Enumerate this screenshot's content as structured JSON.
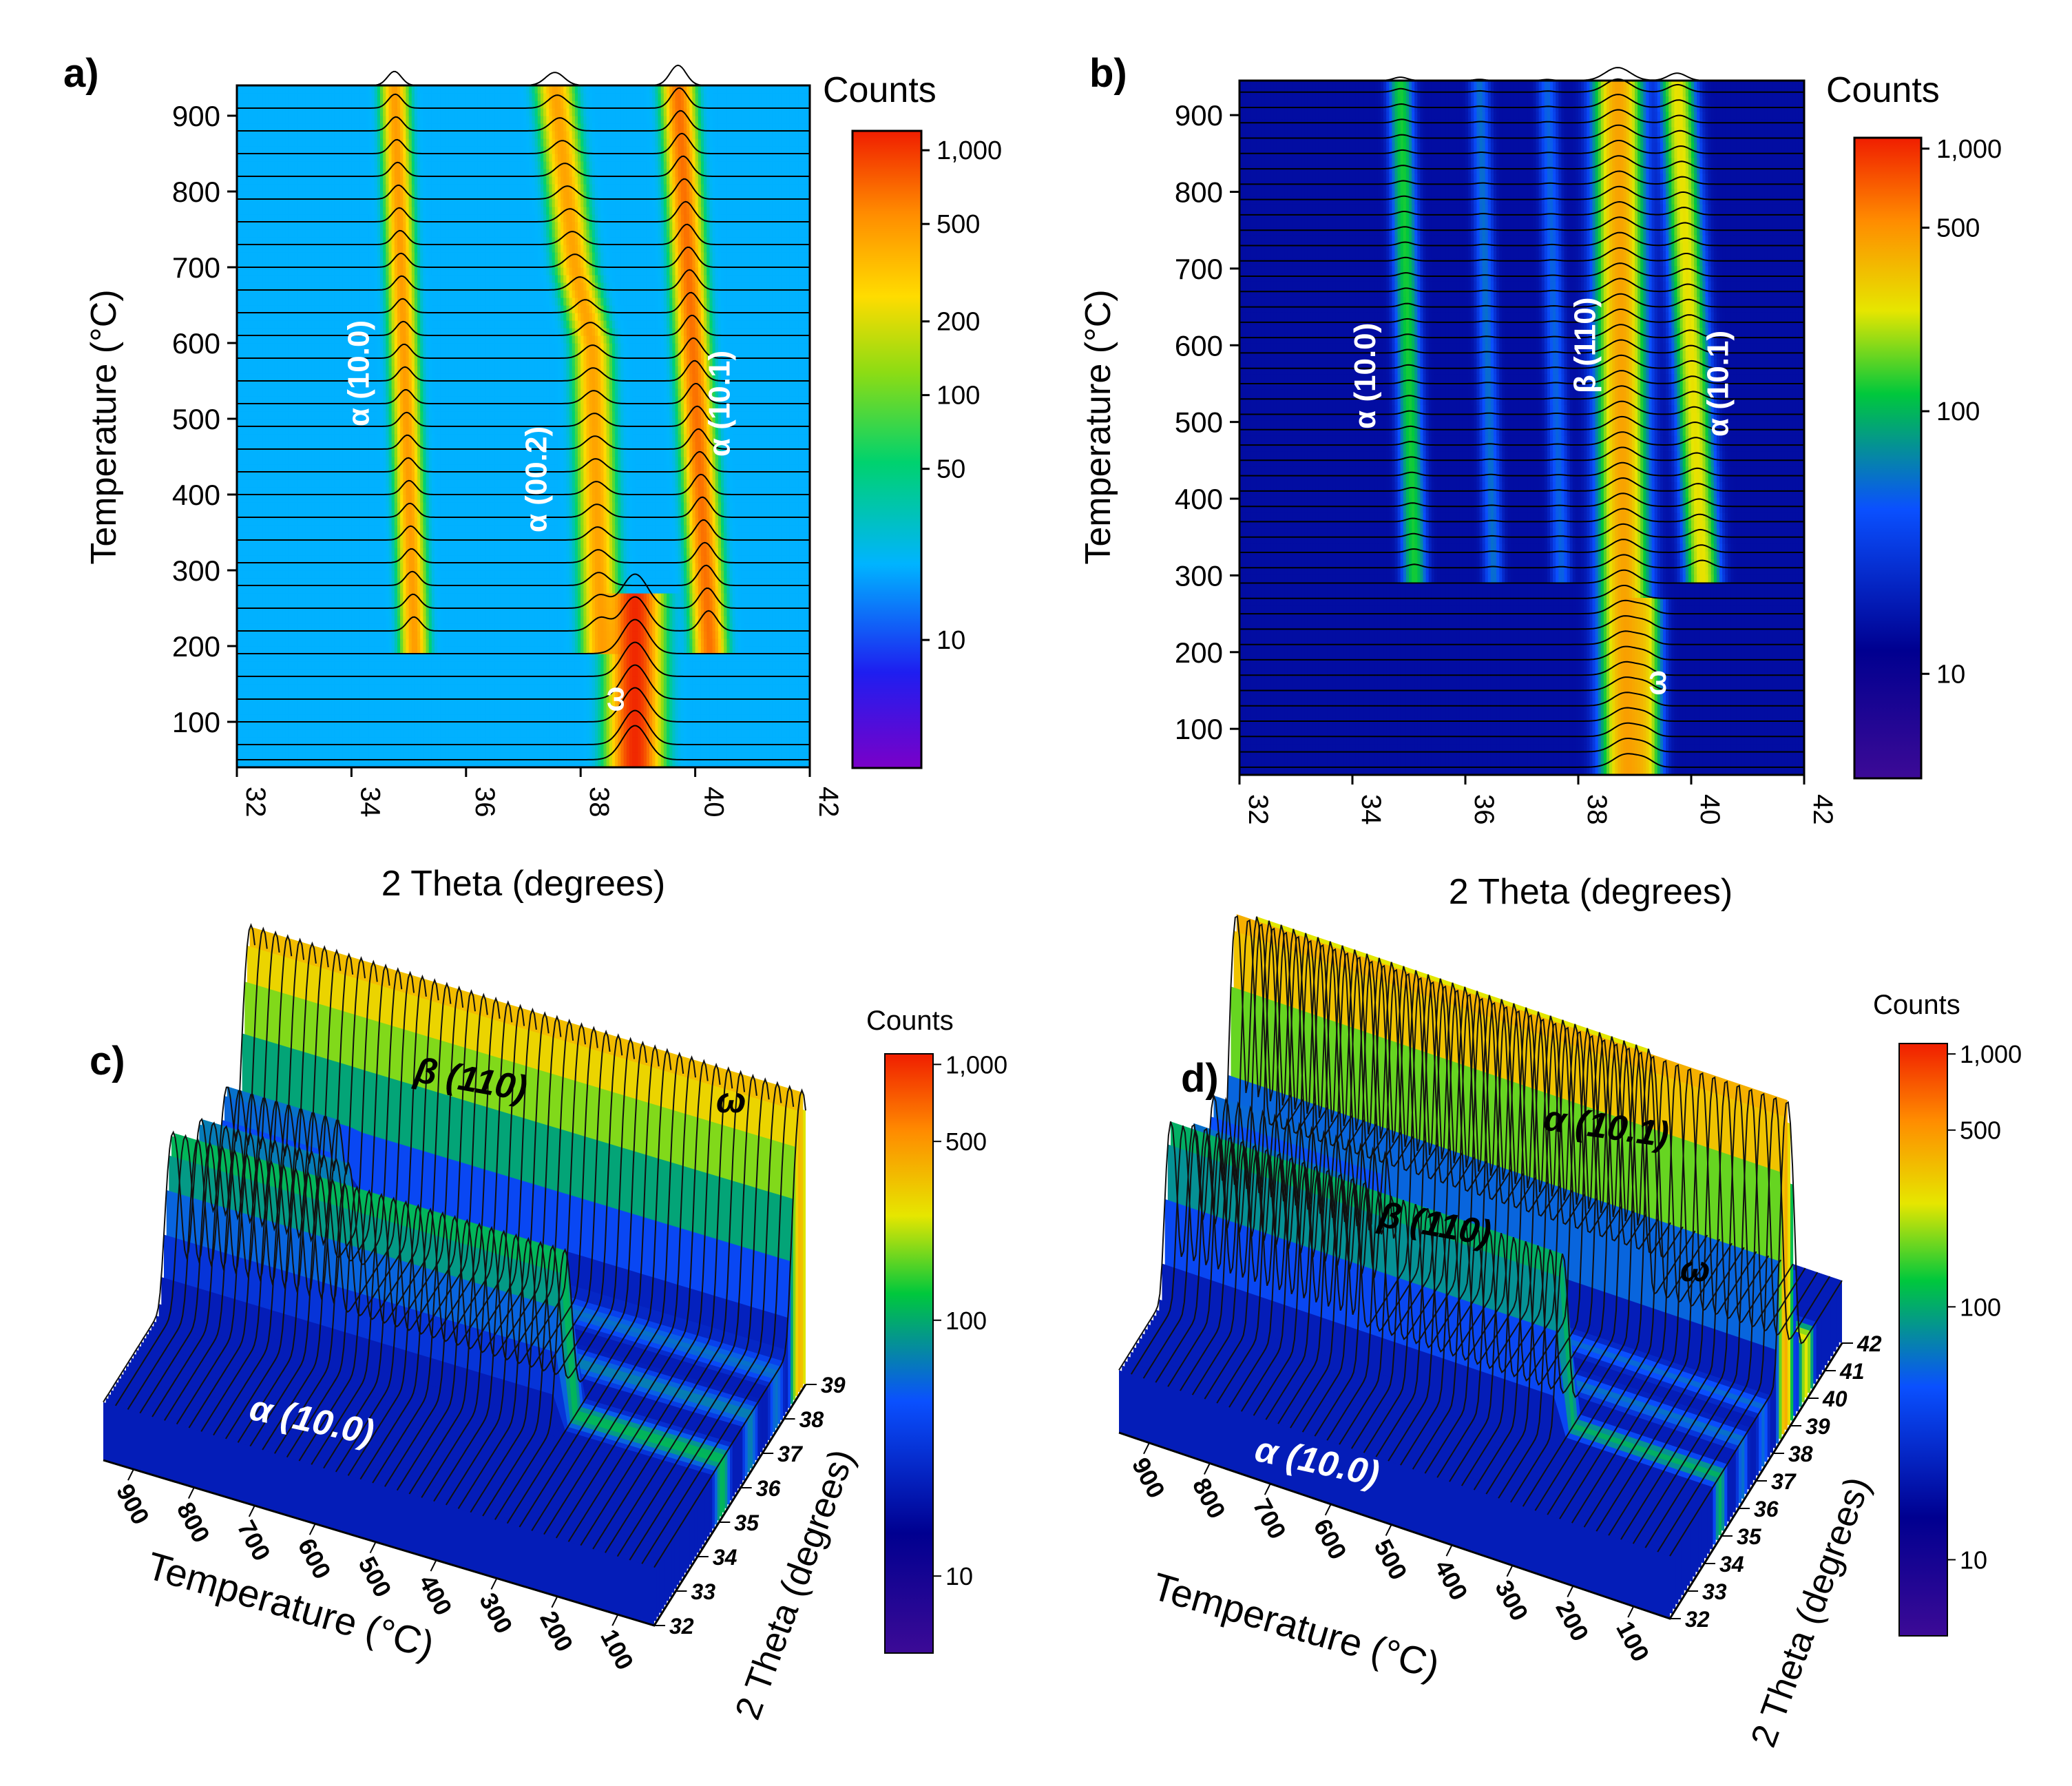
{
  "chart_data": [
    {
      "panel": "a)",
      "type": "heatmap",
      "xlabel": "2 Theta (degrees)",
      "ylabel": "Temperature (°C)",
      "xlim": [
        32,
        42
      ],
      "ylim": [
        40,
        940
      ],
      "x_ticks": [
        "32",
        "34",
        "36",
        "38",
        "40",
        "42"
      ],
      "y_ticks": [
        "100",
        "200",
        "300",
        "400",
        "500",
        "600",
        "700",
        "800",
        "900"
      ],
      "scan_temperatures": [
        50,
        70,
        100,
        130,
        160,
        190,
        220,
        250,
        280,
        310,
        340,
        370,
        400,
        430,
        460,
        490,
        520,
        550,
        580,
        610,
        640,
        670,
        700,
        730,
        760,
        790,
        820,
        850,
        880,
        910,
        940
      ],
      "colorbar": {
        "title": "Counts",
        "min": 3,
        "max": 1200,
        "scale": "log",
        "ticks": [
          "1,000",
          "500",
          "200",
          "100",
          "50",
          "10"
        ]
      },
      "background": 20,
      "peaks": [
        {
          "label": "α (10.0)",
          "position": [
            [
              200,
              35.1
            ],
            [
              940,
              34.75
            ]
          ],
          "width": 0.12,
          "intensity": 450
        },
        {
          "label": "α (00.2)",
          "position": [
            [
              200,
              38.35
            ],
            [
              600,
              38.2
            ],
            [
              700,
              37.9
            ],
            [
              940,
              37.55
            ]
          ],
          "width": 0.16,
          "intensity": 420
        },
        {
          "label": "α (10.1)",
          "position": [
            [
              200,
              40.25
            ],
            [
              940,
              39.7
            ]
          ],
          "width": 0.14,
          "intensity": 650
        },
        {
          "label": "ω",
          "position": [
            [
              40,
              38.95
            ],
            [
              260,
              38.95
            ]
          ],
          "width": 0.22,
          "intensity": 1100
        }
      ],
      "annotations": [
        {
          "text": "α (10.0)",
          "x": 34.3,
          "y": 560
        },
        {
          "text": "α (00.2)",
          "x": 37.4,
          "y": 420
        },
        {
          "text": "α (10.1)",
          "x": 40.6,
          "y": 520
        },
        {
          "text": "ω",
          "x": 38.75,
          "y": 130
        }
      ]
    },
    {
      "panel": "b)",
      "type": "heatmap",
      "xlabel": "2 Theta (degrees)",
      "ylabel": "Temperature (°C)",
      "xlim": [
        32,
        42
      ],
      "ylim": [
        40,
        945
      ],
      "x_ticks": [
        "32",
        "34",
        "36",
        "38",
        "40",
        "42"
      ],
      "y_ticks": [
        "100",
        "200",
        "300",
        "400",
        "500",
        "600",
        "700",
        "800",
        "900"
      ],
      "scan_temperatures": [
        50,
        70,
        90,
        110,
        130,
        150,
        170,
        190,
        210,
        230,
        250,
        270,
        290,
        310,
        330,
        350,
        370,
        390,
        410,
        430,
        450,
        470,
        490,
        510,
        530,
        550,
        570,
        590,
        610,
        630,
        650,
        670,
        690,
        710,
        730,
        750,
        770,
        790,
        810,
        830,
        850,
        870,
        890,
        910,
        930,
        945
      ],
      "colorbar": {
        "title": "Counts",
        "min": 4,
        "max": 1100,
        "scale": "log",
        "ticks": [
          "1,000",
          "500",
          "100",
          "10"
        ]
      },
      "background": 15,
      "peaks": [
        {
          "label": "α (10.0)",
          "position": [
            [
              300,
              35.1
            ],
            [
              945,
              34.85
            ]
          ],
          "width": 0.12,
          "intensity": 110
        },
        {
          "label": "",
          "position": [
            [
              300,
              36.5
            ],
            [
              945,
              36.25
            ]
          ],
          "width": 0.1,
          "intensity": 40
        },
        {
          "label": "",
          "position": [
            [
              300,
              37.7
            ],
            [
              945,
              37.45
            ]
          ],
          "width": 0.1,
          "intensity": 35
        },
        {
          "label": "β (110)",
          "position": [
            [
              40,
              38.85
            ],
            [
              945,
              38.7
            ]
          ],
          "width": 0.22,
          "intensity": 420
        },
        {
          "label": "α (10.1)",
          "position": [
            [
              300,
              40.2
            ],
            [
              945,
              39.75
            ]
          ],
          "width": 0.16,
          "intensity": 240
        },
        {
          "label": "ω",
          "position": [
            [
              40,
              39.2
            ],
            [
              260,
              39.2
            ]
          ],
          "width": 0.15,
          "intensity": 200
        }
      ],
      "annotations": [
        {
          "text": "α (10.0)",
          "x": 34.4,
          "y": 560
        },
        {
          "text": "β (110)",
          "x": 38.3,
          "y": 600
        },
        {
          "text": "α (10.1)",
          "x": 40.65,
          "y": 550
        },
        {
          "text": "ω",
          "x": 39.55,
          "y": 160
        }
      ]
    },
    {
      "panel": "c)",
      "type": "area",
      "xlabel": "Temperature (°C)",
      "ylabel": "2 Theta (degrees)",
      "temperature_ticks": [
        "900",
        "800",
        "700",
        "600",
        "500",
        "400",
        "300",
        "200",
        "100"
      ],
      "theta_ticks": [
        "32",
        "33",
        "34",
        "35",
        "36",
        "37",
        "38",
        "39"
      ],
      "theta_range": [
        32,
        39
      ],
      "temperature_range": [
        950,
        40
      ],
      "colorbar": {
        "title": "Counts",
        "min": 5,
        "max": 1100,
        "scale": "log",
        "ticks": [
          "1,000",
          "500",
          "100",
          "10"
        ]
      },
      "ridges": [
        {
          "label": "α (10.0)",
          "theta": 35.2,
          "temperature_range": [
            300,
            950
          ],
          "peak_counts": 120
        },
        {
          "label": "",
          "theta": 36.5,
          "temperature_range": [
            700,
            950
          ],
          "peak_counts": 70
        },
        {
          "label": "",
          "theta": 37.7,
          "temperature_range": [
            750,
            950
          ],
          "peak_counts": 60
        },
        {
          "label": "β (110)",
          "theta": 38.8,
          "temperature_range": [
            40,
            950
          ],
          "peak_counts": 450
        }
      ],
      "annotations": [
        "α (10.0)",
        "β (110)",
        "ω"
      ]
    },
    {
      "panel": "d)",
      "type": "area",
      "xlabel": "Temperature (°C)",
      "ylabel": "2 Theta (degrees)",
      "temperature_ticks": [
        "900",
        "800",
        "700",
        "600",
        "500",
        "400",
        "300",
        "200",
        "100"
      ],
      "theta_ticks": [
        "32",
        "33",
        "34",
        "35",
        "36",
        "37",
        "38",
        "39",
        "40",
        "41",
        "42"
      ],
      "theta_range": [
        32,
        42
      ],
      "temperature_range": [
        950,
        40
      ],
      "colorbar": {
        "title": "Counts",
        "min": 5,
        "max": 1100,
        "scale": "log",
        "ticks": [
          "1,000",
          "500",
          "100",
          "10"
        ]
      },
      "ridges": [
        {
          "label": "α (10.0)",
          "theta": 35.0,
          "temperature_range": [
            300,
            950
          ],
          "peak_counts": 110
        },
        {
          "label": "",
          "theta": 36.3,
          "temperature_range": [
            650,
            950
          ],
          "peak_counts": 60
        },
        {
          "label": "",
          "theta": 37.5,
          "temperature_range": [
            650,
            950
          ],
          "peak_counts": 55
        },
        {
          "label": "β (110)",
          "theta": 38.8,
          "temperature_range": [
            40,
            950
          ],
          "peak_counts": 500
        },
        {
          "label": "α (10.1)",
          "theta": 40.0,
          "temperature_range": [
            300,
            950
          ],
          "peak_counts": 300
        }
      ],
      "annotations": [
        "α (10.0)",
        "β (110)",
        "α (10.1)",
        "ω"
      ]
    }
  ]
}
